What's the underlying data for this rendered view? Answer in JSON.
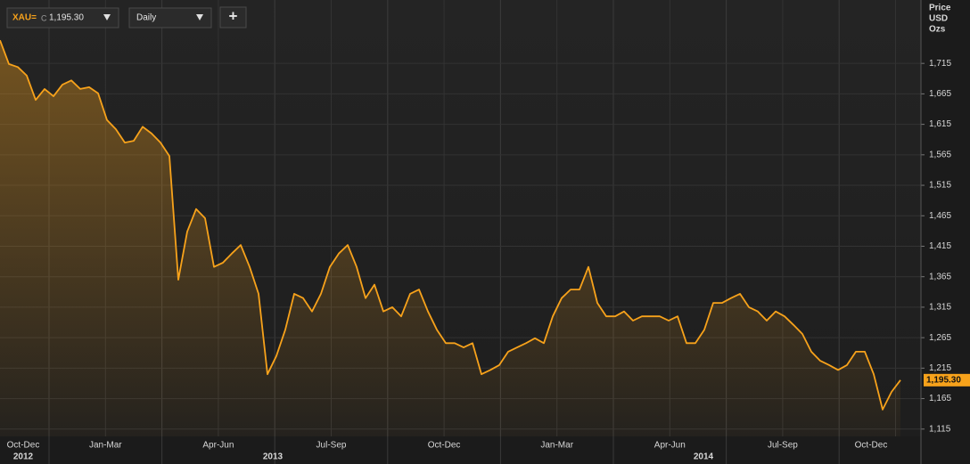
{
  "chart_data": {
    "type": "area",
    "interval": "Daily",
    "price_field": "C",
    "last_label": "1,195.30",
    "add_button": "+",
    "y_axis_title": [
      "Price",
      "USD",
      "Ozs"
    ],
    "series": [
      {
        "name": "XAU=",
        "color": "#f7a21b",
        "values": [
          1753,
          1714,
          1709,
          1695,
          1655,
          1673,
          1661,
          1680,
          1687,
          1673,
          1676,
          1666,
          1622,
          1607,
          1585,
          1588,
          1611,
          1600,
          1585,
          1563,
          1360,
          1439,
          1476,
          1461,
          1381,
          1388,
          1403,
          1417,
          1381,
          1337,
          1205,
          1235,
          1278,
          1337,
          1330,
          1308,
          1337,
          1381,
          1403,
          1417,
          1381,
          1330,
          1352,
          1308,
          1315,
          1300,
          1337,
          1344,
          1308,
          1278,
          1256,
          1256,
          1249,
          1256,
          1205,
          1212,
          1220,
          1242,
          1249,
          1256,
          1264,
          1256,
          1300,
          1330,
          1344,
          1344,
          1381,
          1322,
          1300,
          1300,
          1308,
          1293,
          1300,
          1300,
          1300,
          1293,
          1300,
          1256,
          1256,
          1278,
          1322,
          1322,
          1330,
          1337,
          1315,
          1308,
          1293,
          1308,
          1300,
          1286,
          1271,
          1242,
          1227,
          1220,
          1212,
          1220,
          1242,
          1242,
          1205,
          1147,
          1176,
          1195.3
        ]
      }
    ],
    "quarters": [
      "Oct-Dec",
      "Jan-Mar",
      "Apr-Jun",
      "Jul-Sep",
      "Oct-Dec",
      "Jan-Mar",
      "Apr-Jun",
      "Jul-Sep",
      "Oct-Dec"
    ],
    "years": [
      "2012",
      "2013",
      "2014"
    ],
    "ylim": [
      1103,
      1819
    ],
    "yticks": [
      {
        "value": 1115,
        "label": "1,115"
      },
      {
        "value": 1165,
        "label": "1,165"
      },
      {
        "value": 1215,
        "label": "1,215"
      },
      {
        "value": 1265,
        "label": "1,265"
      },
      {
        "value": 1315,
        "label": "1,315"
      },
      {
        "value": 1365,
        "label": "1,365"
      },
      {
        "value": 1415,
        "label": "1,415"
      },
      {
        "value": 1465,
        "label": "1,465"
      },
      {
        "value": 1515,
        "label": "1,515"
      },
      {
        "value": 1565,
        "label": "1,565"
      },
      {
        "value": 1615,
        "label": "1,615"
      },
      {
        "value": 1665,
        "label": "1,665"
      },
      {
        "value": 1715,
        "label": "1,715"
      }
    ],
    "grid": true
  }
}
